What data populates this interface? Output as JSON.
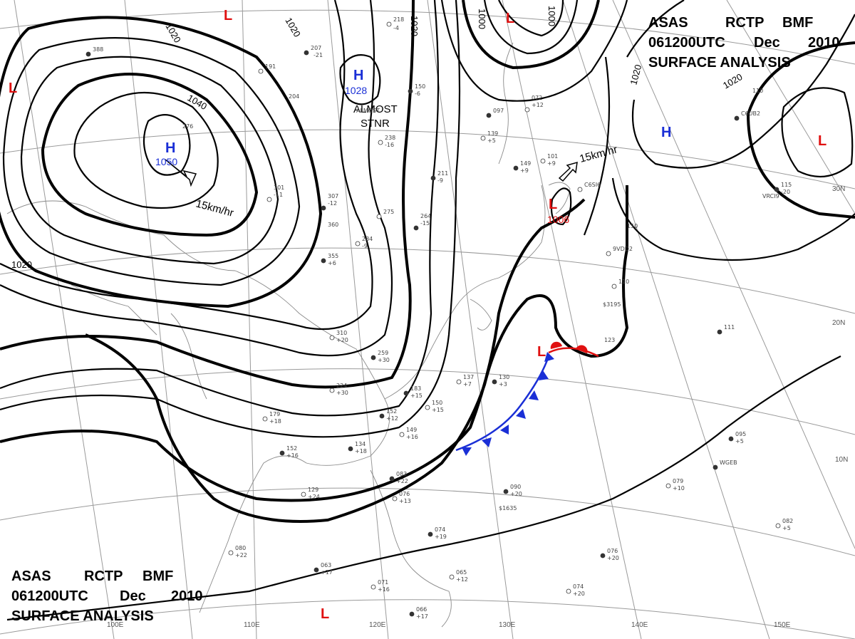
{
  "title_top": {
    "line1": "ASAS RCTP BMF",
    "line1_parts": [
      "ASAS",
      "RCTP",
      "BMF"
    ],
    "line2_parts": [
      "061200UTC",
      "Dec",
      "2010"
    ],
    "line3": "SURFACE ANALYSIS"
  },
  "title_bottom": {
    "line1_parts": [
      "ASAS",
      "RCTP",
      "BMF"
    ],
    "line2_parts": [
      "061200UTC",
      "Dec",
      "2010"
    ],
    "line3": "SURFACE ANALYSIS"
  },
  "pressure_centers": {
    "high_main": {
      "letter": "H",
      "value": "1050"
    },
    "high_central": {
      "letter": "H",
      "value": "1028"
    },
    "high_east": {
      "letter": "H"
    },
    "low_japan": {
      "letter": "L",
      "value": "1006"
    },
    "low_front": {
      "letter": "L"
    },
    "low_top1": {
      "letter": "L"
    },
    "low_top2": {
      "letter": "L"
    },
    "low_west": {
      "letter": "L"
    },
    "low_east": {
      "letter": "L"
    },
    "low_south": {
      "letter": "L"
    }
  },
  "annotations": {
    "stnr_line1": "ALMOST",
    "stnr_line2": "STNR",
    "motion_west": "15km/hr",
    "motion_japan": "15km/hr"
  },
  "isobar_labels": [
    "1020",
    "1020",
    "1040",
    "1020",
    "1020",
    "1000",
    "1000",
    "1020",
    "1020"
  ],
  "longitude_labels": [
    "110E",
    "120E",
    "130E",
    "140E",
    "150E",
    "100E"
  ],
  "latitude_labels": [
    "30N",
    "20N",
    "10N"
  ],
  "observations": [
    "388",
    "276",
    "191",
    "204",
    "207",
    "-21",
    "218",
    "-4",
    "150",
    "-6",
    "238",
    "-16",
    "211",
    "-9",
    "275",
    "264",
    "-15",
    "301",
    "-11",
    "307",
    "-12",
    "360",
    "284",
    "-9",
    "355",
    "+6",
    "310",
    "+20",
    "259",
    "+30",
    "224",
    "+30",
    "183",
    "+15",
    "150",
    "+15",
    "152",
    "+12",
    "149",
    "+16",
    "134",
    "+18",
    "179",
    "+18",
    "152",
    "+16",
    "129",
    "+24",
    "083",
    "+22",
    "076",
    "+13",
    "074",
    "+19",
    "065",
    "+12",
    "063",
    "+17",
    "071",
    "+16",
    "066",
    "+17",
    "080",
    "+22",
    "090",
    "+20",
    "079",
    "+10",
    "095",
    "+5",
    "082",
    "+5",
    "076",
    "+20",
    "074",
    "+20",
    "111",
    "123",
    "110",
    "150",
    "115",
    "-20",
    "137",
    "+7",
    "130",
    "+3",
    "101",
    "+9",
    "149",
    "+9",
    "139",
    "+5",
    "097",
    "072",
    "+12",
    "110",
    "C6UB2",
    "VRCI9",
    "9VDD2",
    "$3195",
    "WGEB",
    "$1635",
    "C6SI6",
    "ALMOST"
  ],
  "colors": {
    "high": "#1a2fd6",
    "low": "#e01010",
    "cold_front": "#1a2fd6",
    "warm_front": "#e01010",
    "isobar": "#000000",
    "grid": "#9a9a9a"
  }
}
